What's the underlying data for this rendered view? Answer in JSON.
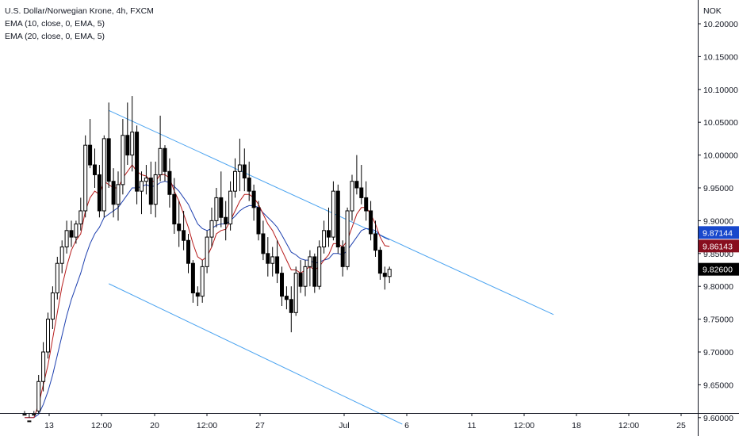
{
  "chart_data": {
    "type": "candlestick",
    "title": "U.S. Dollar/Norwegian Krone, 4h, FXCM",
    "indicators": [
      "EMA (10, close, 0, EMA, 5)",
      "EMA (20, close, 0, EMA, 5)"
    ],
    "currency": "NOK",
    "ylim": [
      9.595,
      10.21
    ],
    "y_ticks": [
      "10.20000",
      "10.15000",
      "10.10000",
      "10.05000",
      "10.00000",
      "9.95000",
      "9.90000",
      "9.85000",
      "9.80000",
      "9.75000",
      "9.70000",
      "9.65000",
      "9.60000"
    ],
    "x_ticks": [
      "13",
      "12:00",
      "20",
      "12:00",
      "27",
      "Jul",
      "6",
      "11",
      "12:00",
      "18",
      "12:00",
      "25"
    ],
    "price_labels": [
      {
        "value": 9.87144,
        "text": "9.87144",
        "color": "#1848cc"
      },
      {
        "value": 9.86143,
        "text": "9.86143",
        "color": "#880e1e"
      },
      {
        "value": 9.826,
        "text": "9.82600",
        "color": "#000000"
      }
    ],
    "candles": [
      [
        9.605,
        9.61,
        9.585,
        9.595
      ],
      [
        9.595,
        9.6,
        9.58,
        9.59
      ],
      [
        9.59,
        9.61,
        9.58,
        9.605
      ],
      [
        9.61,
        9.665,
        9.6,
        9.655
      ],
      [
        9.655,
        9.715,
        9.64,
        9.7
      ],
      [
        9.7,
        9.76,
        9.69,
        9.75
      ],
      [
        9.75,
        9.8,
        9.735,
        9.79
      ],
      [
        9.79,
        9.845,
        9.78,
        9.835
      ],
      [
        9.835,
        9.87,
        9.82,
        9.86
      ],
      [
        9.86,
        9.9,
        9.85,
        9.885
      ],
      [
        9.885,
        9.9,
        9.86,
        9.875
      ],
      [
        9.875,
        9.9,
        9.865,
        9.895
      ],
      [
        9.895,
        9.935,
        9.885,
        9.915
      ],
      [
        9.915,
        10.03,
        9.905,
        10.015
      ],
      [
        10.015,
        10.055,
        9.98,
        9.985
      ],
      [
        9.985,
        10.01,
        9.95,
        9.97
      ],
      [
        9.97,
        9.985,
        9.905,
        9.915
      ],
      [
        9.915,
        10.03,
        9.905,
        10.025
      ],
      [
        10.025,
        10.08,
        9.95,
        9.96
      ],
      [
        9.96,
        9.98,
        9.905,
        9.925
      ],
      [
        9.925,
        9.975,
        9.9,
        9.955
      ],
      [
        9.955,
        10.055,
        9.94,
        10.03
      ],
      [
        10.03,
        10.08,
        9.985,
        10.0
      ],
      [
        10.0,
        10.09,
        9.975,
        10.035
      ],
      [
        10.035,
        10.045,
        9.925,
        9.945
      ],
      [
        9.945,
        9.975,
        9.91,
        9.96
      ],
      [
        9.96,
        9.985,
        9.94,
        9.965
      ],
      [
        9.965,
        9.99,
        9.91,
        9.925
      ],
      [
        9.925,
        9.99,
        9.905,
        9.97
      ],
      [
        9.97,
        10.06,
        9.96,
        10.01
      ],
      [
        10.01,
        10.015,
        9.96,
        9.975
      ],
      [
        9.975,
        9.995,
        9.92,
        9.94
      ],
      [
        9.94,
        9.965,
        9.88,
        9.895
      ],
      [
        9.895,
        9.93,
        9.86,
        9.885
      ],
      [
        9.885,
        9.915,
        9.855,
        9.87
      ],
      [
        9.87,
        9.88,
        9.82,
        9.835
      ],
      [
        9.835,
        9.84,
        9.775,
        9.79
      ],
      [
        9.79,
        9.8,
        9.77,
        9.785
      ],
      [
        9.785,
        9.84,
        9.775,
        9.83
      ],
      [
        9.83,
        9.885,
        9.82,
        9.875
      ],
      [
        9.875,
        9.92,
        9.86,
        9.9
      ],
      [
        9.9,
        9.95,
        9.89,
        9.935
      ],
      [
        9.935,
        9.975,
        9.89,
        9.905
      ],
      [
        9.905,
        9.93,
        9.87,
        9.895
      ],
      [
        9.895,
        9.96,
        9.885,
        9.945
      ],
      [
        9.945,
        9.995,
        9.935,
        9.975
      ],
      [
        9.975,
        10.025,
        9.945,
        9.985
      ],
      [
        9.985,
        10.01,
        9.945,
        9.965
      ],
      [
        9.965,
        9.99,
        9.93,
        9.945
      ],
      [
        9.945,
        9.955,
        9.9,
        9.92
      ],
      [
        9.92,
        9.93,
        9.87,
        9.88
      ],
      [
        9.88,
        9.9,
        9.84,
        9.85
      ],
      [
        9.85,
        9.875,
        9.815,
        9.835
      ],
      [
        9.835,
        9.86,
        9.815,
        9.845
      ],
      [
        9.845,
        9.87,
        9.805,
        9.82
      ],
      [
        9.82,
        9.83,
        9.77,
        9.785
      ],
      [
        9.785,
        9.8,
        9.765,
        9.78
      ],
      [
        9.78,
        9.8,
        9.73,
        9.76
      ],
      [
        9.76,
        9.83,
        9.755,
        9.82
      ],
      [
        9.82,
        9.84,
        9.79,
        9.8
      ],
      [
        9.8,
        9.84,
        9.785,
        9.83
      ],
      [
        9.83,
        9.855,
        9.8,
        9.845
      ],
      [
        9.845,
        9.85,
        9.79,
        9.8
      ],
      [
        9.8,
        9.87,
        9.795,
        9.86
      ],
      [
        9.86,
        9.9,
        9.85,
        9.885
      ],
      [
        9.885,
        9.92,
        9.86,
        9.875
      ],
      [
        9.875,
        9.96,
        9.87,
        9.945
      ],
      [
        9.945,
        9.955,
        9.85,
        9.86
      ],
      [
        9.86,
        9.87,
        9.815,
        9.83
      ],
      [
        9.83,
        9.92,
        9.825,
        9.915
      ],
      [
        9.915,
        9.97,
        9.9,
        9.96
      ],
      [
        9.96,
        10.0,
        9.94,
        9.95
      ],
      [
        9.95,
        9.985,
        9.925,
        9.935
      ],
      [
        9.935,
        9.96,
        9.9,
        9.915
      ],
      [
        9.915,
        9.93,
        9.87,
        9.88
      ],
      [
        9.88,
        9.9,
        9.845,
        9.855
      ],
      [
        9.855,
        9.86,
        9.81,
        9.82
      ],
      [
        9.82,
        9.83,
        9.795,
        9.815
      ],
      [
        9.815,
        9.83,
        9.805,
        9.826
      ]
    ],
    "ema10": [
      9.6,
      9.6,
      9.6,
      9.62,
      9.65,
      9.68,
      9.72,
      9.76,
      9.8,
      9.83,
      9.855,
      9.87,
      9.88,
      9.915,
      9.935,
      9.945,
      9.94,
      9.96,
      9.955,
      9.95,
      9.95,
      9.965,
      9.975,
      9.985,
      9.975,
      9.97,
      9.968,
      9.96,
      9.96,
      9.97,
      9.97,
      9.965,
      9.945,
      9.93,
      9.91,
      9.89,
      9.865,
      9.845,
      9.84,
      9.845,
      9.86,
      9.88,
      9.885,
      9.887,
      9.9,
      9.915,
      9.93,
      9.94,
      9.94,
      9.935,
      9.925,
      9.91,
      9.895,
      9.885,
      9.87,
      9.855,
      9.84,
      9.825,
      9.825,
      9.82,
      9.825,
      9.83,
      9.825,
      9.83,
      9.84,
      9.848,
      9.865,
      9.865,
      9.86,
      9.87,
      9.89,
      9.91,
      9.92,
      9.92,
      9.91,
      9.895,
      9.875,
      9.862,
      9.861
    ],
    "ema20": [
      9.6,
      9.6,
      9.6,
      9.605,
      9.62,
      9.64,
      9.665,
      9.695,
      9.725,
      9.755,
      9.78,
      9.8,
      9.82,
      9.845,
      9.865,
      9.88,
      9.89,
      9.905,
      9.91,
      9.915,
      9.92,
      9.93,
      9.94,
      9.95,
      9.95,
      9.952,
      9.955,
      9.952,
      9.953,
      9.958,
      9.96,
      9.958,
      9.952,
      9.945,
      9.935,
      9.925,
      9.91,
      9.895,
      9.888,
      9.885,
      9.888,
      9.893,
      9.895,
      9.895,
      9.9,
      9.907,
      9.915,
      9.92,
      9.923,
      9.923,
      9.92,
      9.912,
      9.905,
      9.898,
      9.89,
      9.878,
      9.865,
      9.852,
      9.848,
      9.842,
      9.84,
      9.84,
      9.835,
      9.837,
      9.84,
      9.842,
      9.85,
      9.85,
      9.848,
      9.855,
      9.865,
      9.875,
      9.885,
      9.888,
      9.887,
      9.885,
      9.878,
      9.874,
      9.871
    ],
    "trendlines": [
      {
        "name": "channel-upper",
        "from": {
          "candle": 18,
          "price": 10.068
        },
        "to": {
          "candle": 77,
          "price": 9.875
        },
        "extend_to_price": 9.757
      },
      {
        "name": "channel-lower",
        "from": {
          "candle": 18,
          "price": 9.804
        },
        "to": {
          "candle": 69,
          "price": 9.63
        },
        "extend_to_price": 9.59
      }
    ],
    "colors": {
      "up": "#ffffff",
      "down": "#000000",
      "wick": "#000000",
      "ema10": "#b71c1c",
      "ema20": "#1e40af",
      "trendline": "#4aa3f0",
      "axis_text": "#131722",
      "last_price_bg": "#000000"
    }
  }
}
